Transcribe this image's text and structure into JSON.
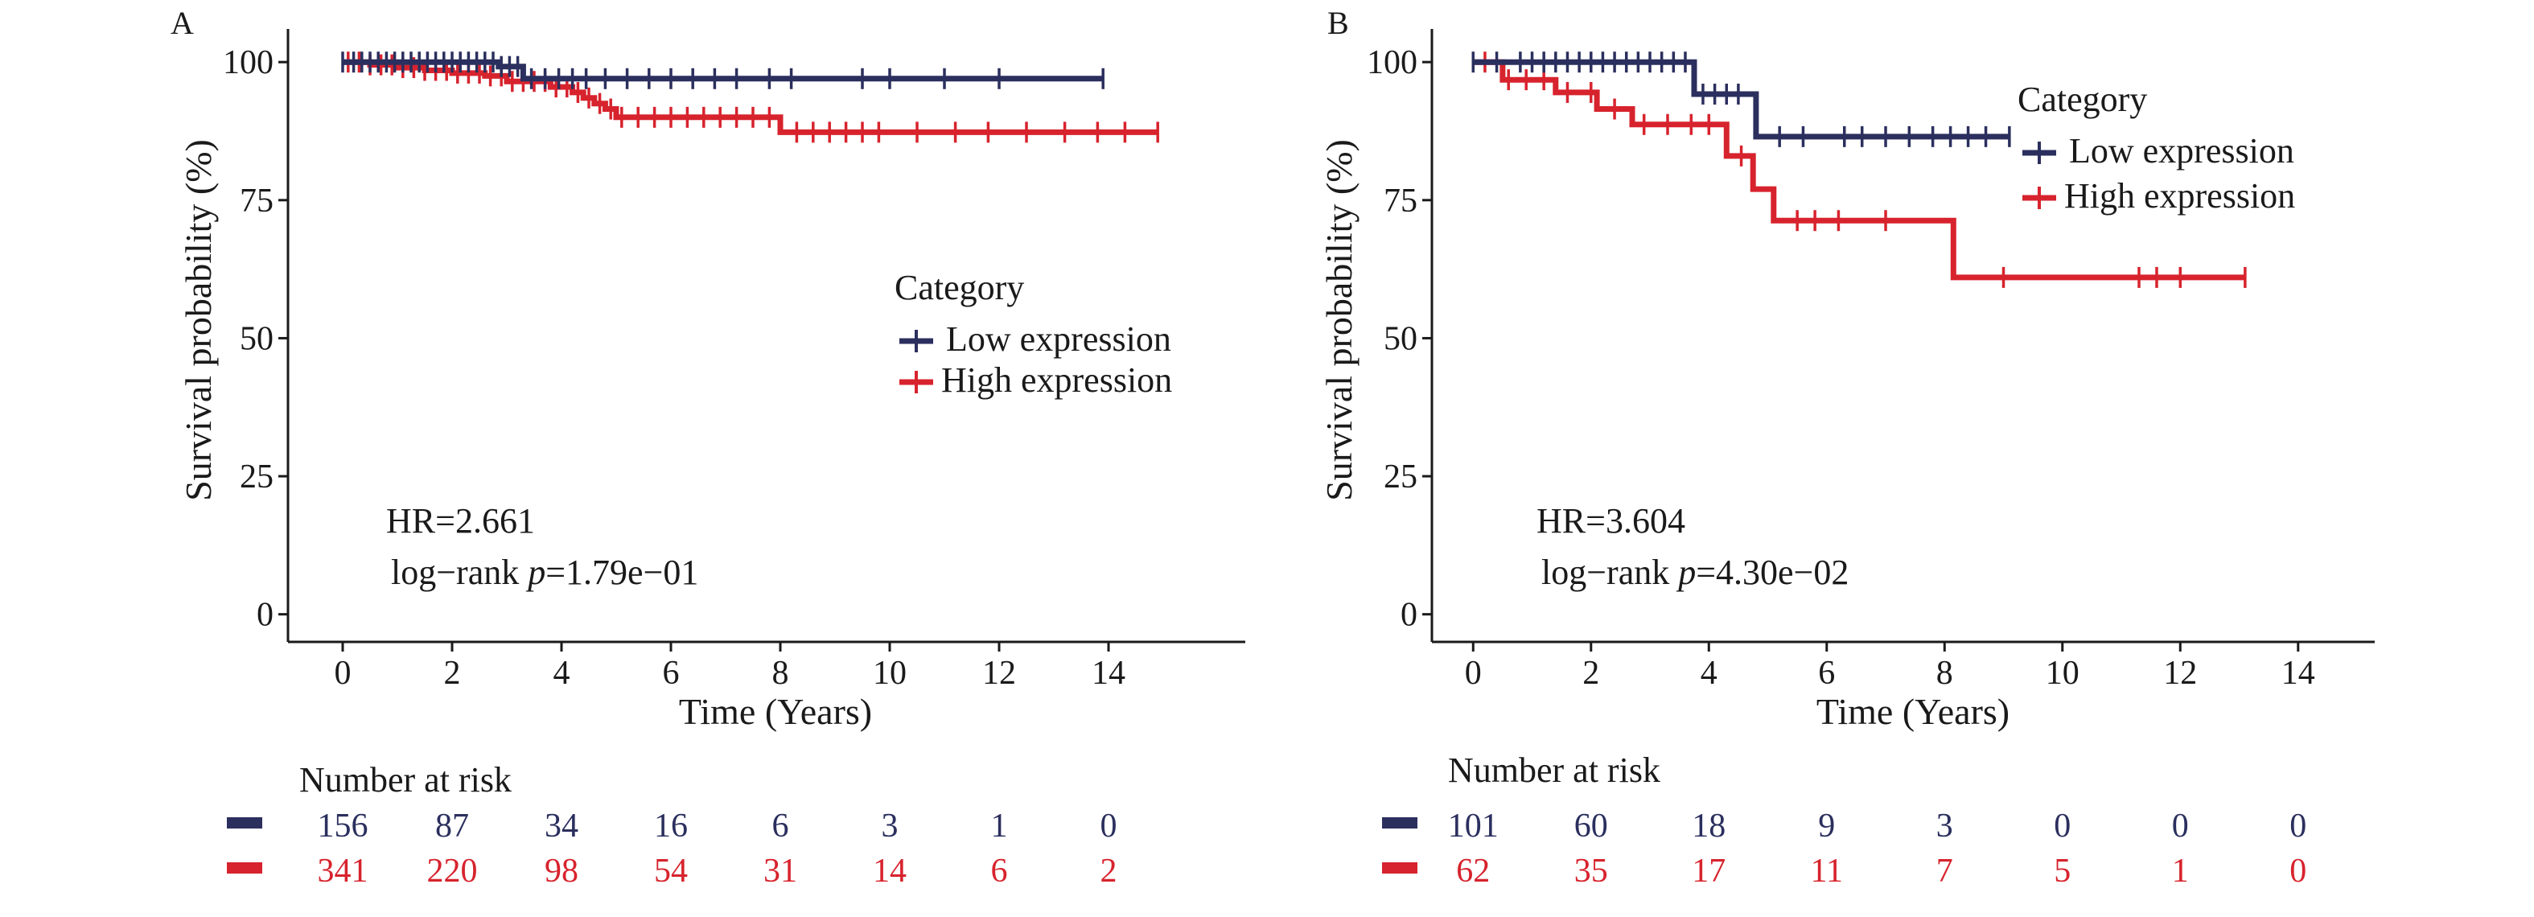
{
  "colors": {
    "low": "#2b2f5e",
    "high": "#d7232d",
    "axis": "#1a1a1a"
  },
  "chart_data": [
    {
      "type": "line",
      "panel_label": "A",
      "xlabel": "Time (Years)",
      "ylabel": "Survival probability (%)",
      "xlim": [
        -1,
        16.5
      ],
      "ylim": [
        -5,
        106
      ],
      "xticks": [
        0,
        2,
        4,
        6,
        8,
        10,
        12,
        14
      ],
      "yticks": [
        0,
        25,
        50,
        75,
        100
      ],
      "grid": false,
      "legend_position": "right-middle",
      "legend_title": "Category",
      "annotation": {
        "hr": "HR=2.661",
        "logrank_prefix": "log−rank ",
        "p_symbol": "p",
        "p_value": "=1.79e−01"
      },
      "series": [
        {
          "name": "Low expression",
          "color_key": "low",
          "steps": [
            [
              0,
              100
            ],
            [
              2.85,
              100
            ],
            [
              2.85,
              99.2
            ],
            [
              3.3,
              99.2
            ],
            [
              3.3,
              97
            ],
            [
              13.9,
              97
            ]
          ],
          "censor": [
            0,
            0.2,
            0.35,
            0.5,
            0.65,
            0.8,
            0.95,
            1.1,
            1.25,
            1.4,
            1.55,
            1.7,
            1.85,
            2.0,
            2.15,
            2.3,
            2.45,
            2.6,
            2.75,
            2.9,
            3.05,
            3.2,
            3.45,
            3.7,
            3.95,
            4.2,
            4.45,
            4.8,
            5.2,
            5.6,
            6.0,
            6.4,
            6.8,
            7.2,
            7.8,
            8.2,
            9.5,
            10.0,
            11.0,
            12.0,
            13.9
          ]
        },
        {
          "name": "High expression",
          "color_key": "high",
          "steps": [
            [
              0,
              100
            ],
            [
              0.5,
              100
            ],
            [
              0.5,
              99.5
            ],
            [
              1.0,
              99.5
            ],
            [
              1.0,
              99
            ],
            [
              1.5,
              99
            ],
            [
              1.5,
              98.5
            ],
            [
              2.0,
              98.5
            ],
            [
              2.0,
              98
            ],
            [
              2.6,
              98
            ],
            [
              2.6,
              97.5
            ],
            [
              3.0,
              97.5
            ],
            [
              3.0,
              96.5
            ],
            [
              3.8,
              96.5
            ],
            [
              3.8,
              95.5
            ],
            [
              4.2,
              95.5
            ],
            [
              4.2,
              94.5
            ],
            [
              4.4,
              94.5
            ],
            [
              4.4,
              93.5
            ],
            [
              4.6,
              93.5
            ],
            [
              4.6,
              92.5
            ],
            [
              4.8,
              92.5
            ],
            [
              4.8,
              91.5
            ],
            [
              5.0,
              91.5
            ],
            [
              5.0,
              90
            ],
            [
              8.0,
              90
            ],
            [
              8.0,
              87.3
            ],
            [
              14.9,
              87.3
            ]
          ],
          "censor": [
            0.1,
            0.3,
            0.5,
            0.7,
            0.9,
            1.1,
            1.3,
            1.5,
            1.7,
            1.9,
            2.1,
            2.3,
            2.5,
            2.7,
            2.9,
            3.1,
            3.3,
            3.5,
            3.7,
            3.9,
            4.1,
            4.3,
            4.5,
            4.7,
            4.9,
            5.1,
            5.4,
            5.7,
            6.0,
            6.3,
            6.6,
            6.9,
            7.2,
            7.5,
            7.8,
            8.3,
            8.6,
            8.9,
            9.2,
            9.5,
            9.8,
            10.5,
            11.2,
            11.8,
            12.5,
            13.2,
            13.8,
            14.3,
            14.9
          ]
        }
      ],
      "risk_table": {
        "title": "Number at risk",
        "times": [
          0,
          2,
          4,
          6,
          8,
          10,
          12,
          14
        ],
        "rows": [
          {
            "color_key": "low",
            "values": [
              "156",
              "87",
              "34",
              "16",
              "6",
              "3",
              "1",
              "0"
            ]
          },
          {
            "color_key": "high",
            "values": [
              "341",
              "220",
              "98",
              "54",
              "31",
              "14",
              "6",
              "2"
            ]
          }
        ]
      }
    },
    {
      "type": "line",
      "panel_label": "B",
      "xlabel": "Time (Years)",
      "ylabel": "Survival probability (%)",
      "xlim": [
        -0.7,
        15.3
      ],
      "ylim": [
        -5,
        106
      ],
      "xticks": [
        0,
        2,
        4,
        6,
        8,
        10,
        12,
        14
      ],
      "yticks": [
        0,
        25,
        50,
        75,
        100
      ],
      "grid": false,
      "legend_position": "top-right",
      "legend_title": "Category",
      "annotation": {
        "hr": "HR=3.604",
        "logrank_prefix": "log−rank ",
        "p_symbol": "p",
        "p_value": "=4.30e−02"
      },
      "series": [
        {
          "name": "Low expression",
          "color_key": "low",
          "steps": [
            [
              0,
              100
            ],
            [
              3.75,
              100
            ],
            [
              3.75,
              94.2
            ],
            [
              4.8,
              94.2
            ],
            [
              4.8,
              86.5
            ],
            [
              9.1,
              86.5
            ]
          ],
          "censor": [
            0,
            0.4,
            0.8,
            1.0,
            1.2,
            1.4,
            1.6,
            1.8,
            2.0,
            2.2,
            2.4,
            2.6,
            2.8,
            3.0,
            3.2,
            3.4,
            3.6,
            3.9,
            4.1,
            4.3,
            4.5,
            5.2,
            5.6,
            6.3,
            6.6,
            7.0,
            7.4,
            7.8,
            8.1,
            8.4,
            8.7,
            9.1
          ]
        },
        {
          "name": "High expression",
          "color_key": "high",
          "steps": [
            [
              0,
              100
            ],
            [
              0.5,
              100
            ],
            [
              0.5,
              96.8
            ],
            [
              1.4,
              96.8
            ],
            [
              1.4,
              94.5
            ],
            [
              2.1,
              94.5
            ],
            [
              2.1,
              91.5
            ],
            [
              2.7,
              91.5
            ],
            [
              2.7,
              88.7
            ],
            [
              4.3,
              88.7
            ],
            [
              4.3,
              83
            ],
            [
              4.75,
              83
            ],
            [
              4.75,
              77
            ],
            [
              5.1,
              77
            ],
            [
              5.1,
              71.3
            ],
            [
              8.15,
              71.3
            ],
            [
              8.15,
              61
            ],
            [
              13.1,
              61
            ]
          ],
          "censor": [
            0.2,
            0.6,
            0.9,
            1.2,
            1.6,
            2.0,
            2.4,
            2.9,
            3.3,
            3.7,
            4.0,
            4.55,
            5.5,
            5.8,
            6.2,
            7.0,
            9.0,
            11.3,
            11.6,
            12.0,
            13.1
          ]
        }
      ],
      "risk_table": {
        "title": "Number at risk",
        "times": [
          0,
          2,
          4,
          6,
          8,
          10,
          12,
          14
        ],
        "rows": [
          {
            "color_key": "low",
            "values": [
              "101",
              "60",
              "18",
              "9",
              "3",
              "0",
              "0",
              "0"
            ]
          },
          {
            "color_key": "high",
            "values": [
              "62",
              "35",
              "17",
              "11",
              "7",
              "5",
              "1",
              "0"
            ]
          }
        ]
      }
    }
  ]
}
